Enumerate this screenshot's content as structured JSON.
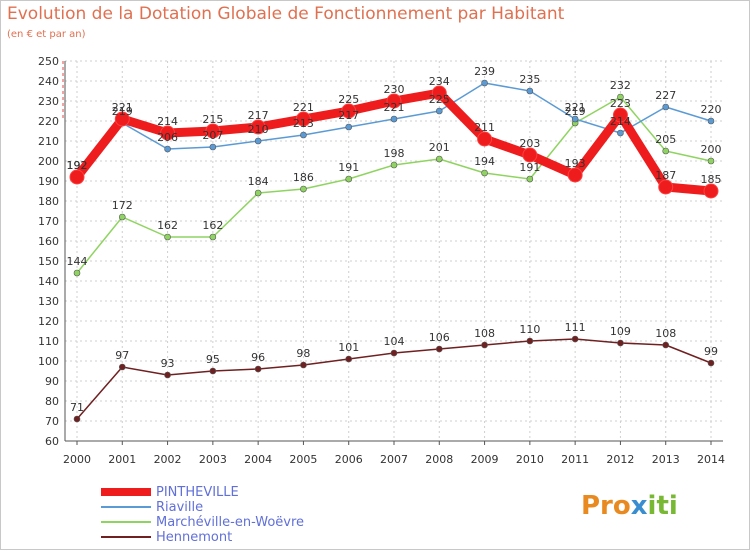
{
  "header": {
    "title": "Evolution de la Dotation Globale de Fonctionnement par Habitant",
    "subtitle": "(en € et par an)"
  },
  "logo": {
    "text": "Proxiti",
    "colors": [
      "#e88a20",
      "#3a8ed0",
      "#78b832"
    ]
  },
  "chart_data": {
    "type": "line",
    "title": "Evolution de la Dotation Globale de Fonctionnement par Habitant",
    "subtitle": "(en € et par an)",
    "x": [
      "2000",
      "2001",
      "2002",
      "2003",
      "2004",
      "2005",
      "2006",
      "2007",
      "2008",
      "2009",
      "2010",
      "2011",
      "2012",
      "2013",
      "2014"
    ],
    "y_ticks": [
      60,
      70,
      80,
      90,
      100,
      110,
      120,
      130,
      140,
      150,
      160,
      170,
      180,
      190,
      200,
      210,
      220,
      230,
      240,
      250
    ],
    "ylim": [
      60,
      250
    ],
    "grid": true,
    "legend_position": "bottom-left",
    "series": [
      {
        "name": "PINTHEVILLE",
        "color": "#ee1c1c",
        "values": [
          192,
          221,
          214,
          215,
          217,
          221,
          225,
          230,
          234,
          211,
          203,
          193,
          223,
          187,
          185
        ]
      },
      {
        "name": "Riaville",
        "color": "#5b9bd5",
        "values": [
          192,
          219,
          206,
          207,
          210,
          213,
          217,
          221,
          225,
          239,
          235,
          221,
          214,
          227,
          220
        ]
      },
      {
        "name": "Marchéville-en-Woëvre",
        "color": "#8fd460",
        "values": [
          144,
          172,
          162,
          162,
          184,
          186,
          191,
          198,
          201,
          194,
          191,
          219,
          232,
          205,
          200
        ]
      },
      {
        "name": "Hennemont",
        "color": "#702020",
        "values": [
          71,
          97,
          93,
          95,
          96,
          98,
          101,
          104,
          106,
          108,
          110,
          111,
          109,
          108,
          99
        ]
      }
    ]
  }
}
